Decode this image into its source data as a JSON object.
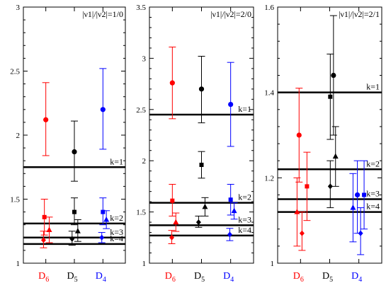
{
  "colors": {
    "D6": "#ff0000",
    "D5": "#000000",
    "D4": "#0000ff"
  },
  "chart_data": [
    {
      "type": "scatter",
      "title": "|ν1|/|ν2|=1/0",
      "ylim": [
        1,
        3
      ],
      "yticks": [
        1,
        1.5,
        2,
        2.5,
        3
      ],
      "ytick_labels": [
        "1",
        "1.5",
        "2",
        "2.5",
        "3"
      ],
      "categories": [
        "D6",
        "D5",
        "D4"
      ],
      "category_labels": [
        {
          "main": "D",
          "sub": "6",
          "color": "#ff0000"
        },
        {
          "main": "D",
          "sub": "5",
          "color": "#000000"
        },
        {
          "main": "D",
          "sub": "4",
          "color": "#0000ff"
        }
      ],
      "hlines": [
        {
          "label": "k=1",
          "y": 1.75
        },
        {
          "label": "k=2",
          "y": 1.31
        },
        {
          "label": "k=3",
          "y": 1.2
        },
        {
          "label": "k=4",
          "y": 1.15
        }
      ],
      "points": [
        {
          "cat": 0,
          "dx": 0.0,
          "y": 2.12,
          "lo": 1.84,
          "hi": 2.41,
          "marker": "circle"
        },
        {
          "cat": 0,
          "dx": -0.05,
          "y": 1.36,
          "lo": 1.22,
          "hi": 1.5,
          "marker": "square"
        },
        {
          "cat": 0,
          "dx": 0.12,
          "y": 1.26,
          "lo": 1.16,
          "hi": 1.36,
          "marker": "triangle"
        },
        {
          "cat": 0,
          "dx": -0.08,
          "y": 1.18,
          "lo": 1.12,
          "hi": 1.25,
          "marker": "diamond"
        },
        {
          "cat": 1,
          "dx": 0.0,
          "y": 1.87,
          "lo": 1.64,
          "hi": 2.11,
          "marker": "circle"
        },
        {
          "cat": 1,
          "dx": 0.0,
          "y": 1.4,
          "lo": 1.3,
          "hi": 1.51,
          "marker": "square"
        },
        {
          "cat": 1,
          "dx": 0.12,
          "y": 1.25,
          "lo": 1.17,
          "hi": 1.34,
          "marker": "triangle"
        },
        {
          "cat": 1,
          "dx": -0.08,
          "y": 1.19,
          "lo": 1.14,
          "hi": 1.25,
          "marker": "diamond"
        },
        {
          "cat": 2,
          "dx": 0.0,
          "y": 2.2,
          "lo": 1.89,
          "hi": 2.52,
          "marker": "circle"
        },
        {
          "cat": 2,
          "dx": 0.0,
          "y": 1.4,
          "lo": 1.3,
          "hi": 1.51,
          "marker": "square"
        },
        {
          "cat": 2,
          "dx": 0.12,
          "y": 1.34,
          "lo": 1.27,
          "hi": 1.41,
          "marker": "triangle"
        },
        {
          "cat": 2,
          "dx": -0.04,
          "y": 1.2,
          "lo": 1.16,
          "hi": 1.24,
          "marker": "diamond"
        }
      ]
    },
    {
      "type": "scatter",
      "title": "|ν1|/|ν2|=2/0",
      "ylim": [
        1,
        3.5
      ],
      "yticks": [
        1,
        1.5,
        2,
        2.5,
        3,
        3.5
      ],
      "ytick_labels": [
        "1",
        "1.5",
        "2",
        "2.5",
        "3",
        "3.5"
      ],
      "categories": [
        "D6",
        "D5",
        "D4"
      ],
      "category_labels": [
        {
          "main": "D",
          "sub": "6",
          "color": "#ff0000"
        },
        {
          "main": "D",
          "sub": "5",
          "color": "#000000"
        },
        {
          "main": "D",
          "sub": "4",
          "color": "#0000ff"
        }
      ],
      "hlines": [
        {
          "label": "k=1",
          "y": 2.45
        },
        {
          "label": "k=2",
          "y": 1.59
        },
        {
          "label": "k=3",
          "y": 1.37
        },
        {
          "label": "k=4",
          "y": 1.27
        }
      ],
      "points": [
        {
          "cat": 0,
          "dx": 0.0,
          "y": 2.76,
          "lo": 2.41,
          "hi": 3.11,
          "marker": "circle"
        },
        {
          "cat": 0,
          "dx": 0.0,
          "y": 1.61,
          "lo": 1.46,
          "hi": 1.77,
          "marker": "square"
        },
        {
          "cat": 0,
          "dx": 0.12,
          "y": 1.4,
          "lo": 1.31,
          "hi": 1.49,
          "marker": "triangle"
        },
        {
          "cat": 0,
          "dx": -0.02,
          "y": 1.25,
          "lo": 1.19,
          "hi": 1.32,
          "marker": "diamond"
        },
        {
          "cat": 1,
          "dx": 0.0,
          "y": 2.7,
          "lo": 2.37,
          "hi": 3.02,
          "marker": "circle"
        },
        {
          "cat": 1,
          "dx": 0.0,
          "y": 1.96,
          "lo": 1.83,
          "hi": 2.09,
          "marker": "square"
        },
        {
          "cat": 1,
          "dx": 0.12,
          "y": 1.55,
          "lo": 1.46,
          "hi": 1.64,
          "marker": "triangle"
        },
        {
          "cat": 1,
          "dx": -0.1,
          "y": 1.4,
          "lo": 1.35,
          "hi": 1.46,
          "marker": "diamond"
        },
        {
          "cat": 2,
          "dx": 0.0,
          "y": 2.55,
          "lo": 2.14,
          "hi": 2.96,
          "marker": "circle"
        },
        {
          "cat": 2,
          "dx": 0.0,
          "y": 1.62,
          "lo": 1.47,
          "hi": 1.77,
          "marker": "square"
        },
        {
          "cat": 2,
          "dx": 0.12,
          "y": 1.51,
          "lo": 1.43,
          "hi": 1.59,
          "marker": "triangle"
        },
        {
          "cat": 2,
          "dx": -0.03,
          "y": 1.28,
          "lo": 1.22,
          "hi": 1.34,
          "marker": "diamond"
        }
      ]
    },
    {
      "type": "scatter",
      "title": "|ν1|/|ν2|=2/1",
      "ylim": [
        1,
        1.6
      ],
      "yticks": [
        1,
        1.2,
        1.4,
        1.6
      ],
      "ytick_labels": [
        "1",
        "1.2",
        "1.4",
        "1.6"
      ],
      "categories": [
        "D6",
        "D5",
        "D4"
      ],
      "category_labels": [
        {
          "main": "D",
          "sub": "6",
          "color": "#ff0000"
        },
        {
          "main": "D",
          "sub": "5",
          "color": "#000000"
        },
        {
          "main": "D",
          "sub": "4",
          "color": "#0000ff"
        }
      ],
      "hlines": [
        {
          "label": "k=1",
          "y": 1.4
        },
        {
          "label": "k=2",
          "y": 1.22
        },
        {
          "label": "k=3",
          "y": 1.15
        },
        {
          "label": "k=4",
          "y": 1.12
        }
      ],
      "points": [
        {
          "cat": 0,
          "dx": -0.05,
          "y": 1.3,
          "lo": 1.19,
          "hi": 1.41,
          "marker": "circle"
        },
        {
          "cat": 0,
          "dx": 0.22,
          "y": 1.18,
          "lo": 1.1,
          "hi": 1.26,
          "marker": "square"
        },
        {
          "cat": 0,
          "dx": -0.12,
          "y": 1.12,
          "lo": 1.04,
          "hi": 1.2,
          "marker": "triangle"
        },
        {
          "cat": 0,
          "dx": 0.05,
          "y": 1.07,
          "lo": 1.03,
          "hi": 1.12,
          "marker": "diamond"
        },
        {
          "cat": 1,
          "dx": 0.13,
          "y": 1.44,
          "lo": 1.3,
          "hi": 1.58,
          "marker": "circle"
        },
        {
          "cat": 1,
          "dx": 0.02,
          "y": 1.39,
          "lo": 1.29,
          "hi": 1.49,
          "marker": "square"
        },
        {
          "cat": 1,
          "dx": 0.2,
          "y": 1.25,
          "lo": 1.18,
          "hi": 1.32,
          "marker": "triangle"
        },
        {
          "cat": 1,
          "dx": 0.02,
          "y": 1.18,
          "lo": 1.13,
          "hi": 1.24,
          "marker": "diamond"
        },
        {
          "cat": 2,
          "dx": -0.05,
          "y": 1.16,
          "lo": 1.07,
          "hi": 1.24,
          "marker": "circle"
        },
        {
          "cat": 2,
          "dx": 0.18,
          "y": 1.16,
          "lo": 1.08,
          "hi": 1.24,
          "marker": "square"
        },
        {
          "cat": 2,
          "dx": -0.2,
          "y": 1.13,
          "lo": 1.05,
          "hi": 1.21,
          "marker": "triangle"
        },
        {
          "cat": 2,
          "dx": 0.06,
          "y": 1.07,
          "lo": 1.02,
          "hi": 1.13,
          "marker": "diamond"
        }
      ]
    }
  ]
}
